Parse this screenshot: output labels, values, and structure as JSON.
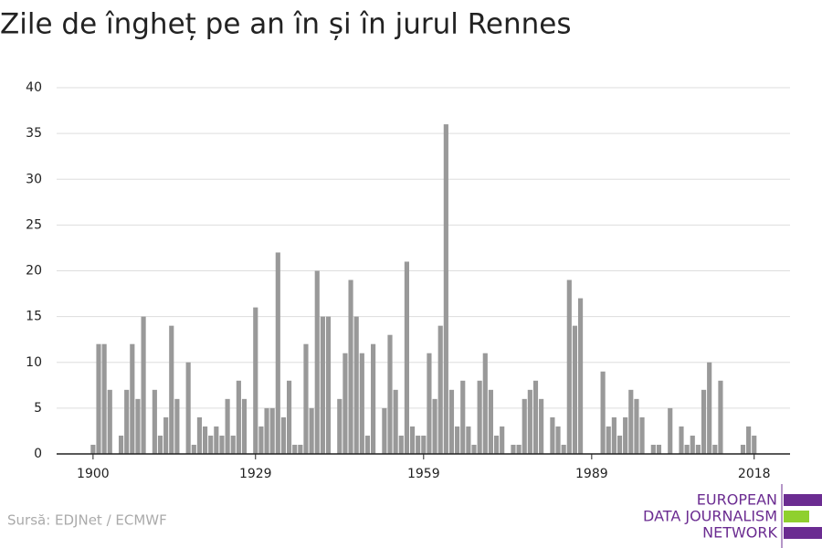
{
  "chart_data": {
    "type": "bar",
    "title": "Zile de îngheț pe an în și în jurul Rennes",
    "x": [
      1900,
      1901,
      1902,
      1903,
      1904,
      1905,
      1906,
      1907,
      1908,
      1909,
      1910,
      1911,
      1912,
      1913,
      1914,
      1915,
      1916,
      1917,
      1918,
      1919,
      1920,
      1921,
      1922,
      1923,
      1924,
      1925,
      1926,
      1927,
      1928,
      1929,
      1930,
      1931,
      1932,
      1933,
      1934,
      1935,
      1936,
      1937,
      1938,
      1939,
      1940,
      1941,
      1942,
      1943,
      1944,
      1945,
      1946,
      1947,
      1948,
      1949,
      1950,
      1951,
      1952,
      1953,
      1954,
      1955,
      1956,
      1957,
      1958,
      1959,
      1960,
      1961,
      1962,
      1963,
      1964,
      1965,
      1966,
      1967,
      1968,
      1969,
      1970,
      1971,
      1972,
      1973,
      1974,
      1975,
      1976,
      1977,
      1978,
      1979,
      1980,
      1981,
      1982,
      1983,
      1984,
      1985,
      1986,
      1987,
      1988,
      1989,
      1990,
      1991,
      1992,
      1993,
      1994,
      1995,
      1996,
      1997,
      1998,
      1999,
      2000,
      2001,
      2002,
      2003,
      2004,
      2005,
      2006,
      2007,
      2008,
      2009,
      2010,
      2011,
      2012,
      2013,
      2014,
      2015,
      2016,
      2017,
      2018
    ],
    "values": [
      1,
      12,
      12,
      7,
      0,
      2,
      7,
      12,
      6,
      15,
      0,
      7,
      2,
      4,
      14,
      6,
      0,
      10,
      1,
      4,
      3,
      2,
      3,
      2,
      6,
      2,
      8,
      6,
      0,
      16,
      3,
      5,
      5,
      22,
      4,
      8,
      1,
      1,
      12,
      5,
      20,
      15,
      15,
      0,
      6,
      11,
      19,
      15,
      11,
      2,
      12,
      0,
      5,
      13,
      7,
      2,
      21,
      3,
      2,
      2,
      11,
      6,
      14,
      36,
      7,
      3,
      8,
      3,
      1,
      8,
      11,
      7,
      2,
      3,
      0,
      1,
      1,
      6,
      7,
      8,
      6,
      0,
      4,
      3,
      1,
      19,
      14,
      17,
      0,
      0,
      0,
      9,
      3,
      4,
      2,
      4,
      7,
      6,
      4,
      0,
      1,
      1,
      0,
      5,
      0,
      3,
      1,
      2,
      1,
      7,
      10,
      1,
      8,
      0,
      0,
      0,
      1,
      3,
      2
    ],
    "color": "#999999",
    "xlim": [
      1893.5,
      2024.4
    ],
    "xticks": [
      1900,
      1929,
      1959,
      1989,
      2018
    ],
    "ylim": [
      0,
      40
    ],
    "yticks": [
      0,
      5,
      10,
      15,
      20,
      25,
      30,
      35,
      40
    ],
    "grid": true
  },
  "source": "Sursă: EDJNet / ECMWF",
  "logo": [
    "EUROPEAN",
    "DATA JOURNALISM",
    "NETWORK"
  ]
}
